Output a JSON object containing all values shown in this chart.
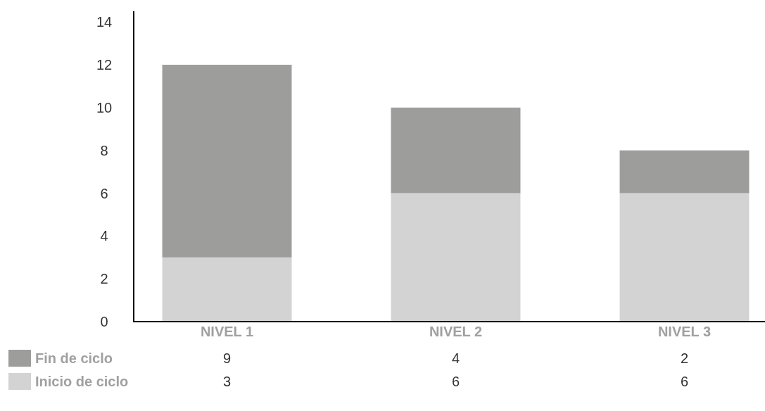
{
  "chart_data": {
    "type": "bar",
    "stacked": true,
    "categories": [
      "NIVEL 1",
      "NIVEL 2",
      "NIVEL 3"
    ],
    "series": [
      {
        "name": "Inicio de ciclo",
        "color": "#d3d3d3",
        "values": [
          3,
          6,
          6
        ]
      },
      {
        "name": "Fin de ciclo",
        "color": "#9d9d9b",
        "values": [
          9,
          4,
          2
        ]
      }
    ],
    "ylim": [
      0,
      14.5
    ],
    "yticks": [
      0,
      2,
      4,
      6,
      8,
      10,
      12,
      14
    ],
    "data_labels": true,
    "legend": "bottom"
  }
}
